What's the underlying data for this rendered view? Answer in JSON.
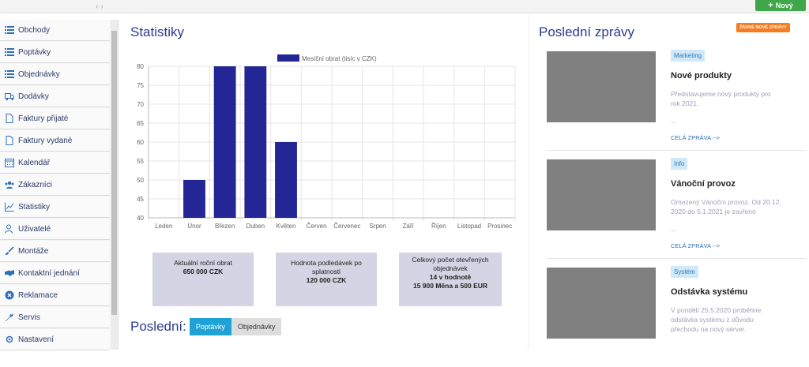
{
  "topbar": {
    "collapse_left": "‹",
    "collapse_right": "›",
    "new_label": "Nový",
    "new_icon": "plus-icon"
  },
  "sidebar": {
    "items": [
      {
        "label": "Obchody",
        "icon": "list-icon"
      },
      {
        "label": "Poptávky",
        "icon": "list-icon"
      },
      {
        "label": "Objednávky",
        "icon": "list-icon"
      },
      {
        "label": "Dodávky",
        "icon": "truck-icon"
      },
      {
        "label": "Faktury přijaté",
        "icon": "file-icon"
      },
      {
        "label": "Faktury vydané",
        "icon": "file-icon"
      },
      {
        "label": "Kalendář",
        "icon": "calendar-icon"
      },
      {
        "label": "Zákazníci",
        "icon": "users-icon"
      },
      {
        "label": "Statistiky",
        "icon": "chart-line-icon"
      },
      {
        "label": "Uživatelé",
        "icon": "user-group-icon"
      },
      {
        "label": "Montáže",
        "icon": "brush-icon"
      },
      {
        "label": "Kontaktní jednání",
        "icon": "handshake-icon"
      },
      {
        "label": "Reklamace",
        "icon": "x-circle-icon"
      },
      {
        "label": "Servis",
        "icon": "wrench-icon"
      },
      {
        "label": "Nastavení",
        "icon": "gear-icon"
      }
    ]
  },
  "main": {
    "title": "Statistiky",
    "cards": [
      {
        "line1": "Aktuální roční obrat",
        "value": "650 000 CZK"
      },
      {
        "line1": "Hodnota podledávek po splatnosti",
        "value": "120 000 CZK"
      },
      {
        "line1": "Celkový počet otevřených objednávek",
        "line2": "14 v hodnotě",
        "value": "15 900 Měna a 500 EUR"
      }
    ],
    "last_label": "Poslední:",
    "tabs": [
      "Poptávky",
      "Objednávky"
    ]
  },
  "chart_data": {
    "type": "bar",
    "categories": [
      "Leden",
      "Únor",
      "Březen",
      "Duben",
      "Květen",
      "Červen",
      "Červenec",
      "Srpen",
      "Září",
      "Říjen",
      "Listopad",
      "Prosinec"
    ],
    "series": [
      {
        "name": "Mesíční obrat (tisíc v CZK)",
        "values": [
          null,
          50,
          80,
          80,
          60,
          null,
          null,
          null,
          null,
          null,
          null,
          null
        ],
        "color": "#232694"
      }
    ],
    "ylim": [
      40,
      80
    ],
    "yticks": [
      40,
      45,
      50,
      55,
      60,
      65,
      70,
      75,
      80
    ],
    "grid": true,
    "legend": "top"
  },
  "news": {
    "title": "Poslední zprávy",
    "badge": "ŽÁDNÉ NOVÉ ZPRÁVY",
    "items": [
      {
        "category": "Marketing",
        "title": "Nové produkty",
        "body": "Představujeme nový produkty pro rok 2021.",
        "dots": "...",
        "more": "CELÁ ZPRÁVA -->"
      },
      {
        "category": "Info",
        "title": "Vánoční provoz",
        "body": "Omezený Vánoční provoz. Od 20.12. 2020 do 5.1.2021 je zavřeno",
        "dots": "...",
        "more": "CELÁ ZPRÁVA -->"
      },
      {
        "category": "Systém",
        "title": "Odstávka systému",
        "body": "V pondělí 25.5.2020 proběhne odstávka systému z důvodu přechodu na nový server.",
        "dots": "",
        "more": ""
      }
    ]
  }
}
